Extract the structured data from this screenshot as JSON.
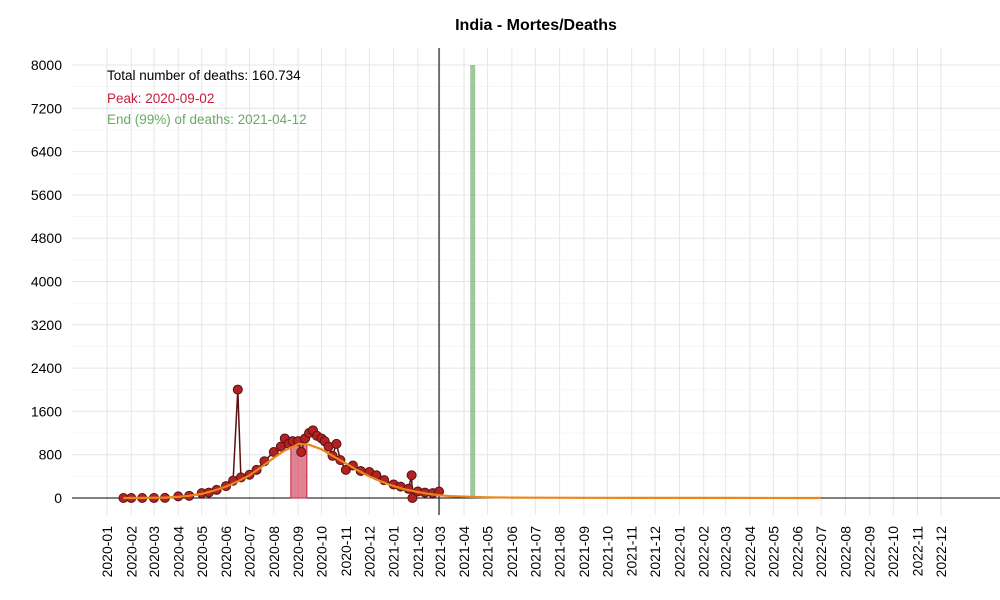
{
  "chart_data": {
    "type": "line",
    "title": "India - Mortes/Deaths",
    "xlabel": "",
    "ylabel": "",
    "xlim": [
      "2020-01-01",
      "2023-01-31"
    ],
    "ylim": [
      0,
      8000
    ],
    "grid": true,
    "y_ticks": [
      0,
      800,
      1600,
      2400,
      3200,
      4000,
      4800,
      5600,
      6400,
      7200,
      8000
    ],
    "x_tick_labels": [
      "2020-01",
      "2020-02",
      "2020-03",
      "2020-04",
      "2020-05",
      "2020-06",
      "2020-07",
      "2020-08",
      "2020-09",
      "2020-10",
      "2020-11",
      "2020-12",
      "2021-01",
      "2021-02",
      "2021-03",
      "2021-04",
      "2021-05",
      "2021-06",
      "2021-07",
      "2021-08",
      "2021-09",
      "2021-10",
      "2021-11",
      "2021-12",
      "2022-01",
      "2022-02",
      "2022-03",
      "2022-04",
      "2022-05",
      "2022-06",
      "2022-07",
      "2022-08",
      "2022-09",
      "2022-10",
      "2022-11",
      "2022-12"
    ],
    "annotations": {
      "total": "Total number of deaths: 160.734",
      "peak": "Peak: 2020-09-02",
      "end": "End (99%) of deaths: 2021-04-12"
    },
    "current_date_line": "2021-02-28",
    "peak_date": "2020-09-02",
    "end_date": "2021-04-12",
    "observed": {
      "dates": [
        "2020-01-22",
        "2020-02-01",
        "2020-02-15",
        "2020-03-01",
        "2020-03-15",
        "2020-04-01",
        "2020-04-15",
        "2020-05-01",
        "2020-05-10",
        "2020-05-20",
        "2020-06-01",
        "2020-06-10",
        "2020-06-16",
        "2020-06-20",
        "2020-07-01",
        "2020-07-10",
        "2020-07-20",
        "2020-08-01",
        "2020-08-10",
        "2020-08-15",
        "2020-08-20",
        "2020-08-25",
        "2020-09-01",
        "2020-09-05",
        "2020-09-10",
        "2020-09-15",
        "2020-09-20",
        "2020-09-25",
        "2020-10-01",
        "2020-10-05",
        "2020-10-10",
        "2020-10-15",
        "2020-10-20",
        "2020-10-25",
        "2020-11-01",
        "2020-11-10",
        "2020-11-20",
        "2020-12-01",
        "2020-12-10",
        "2020-12-20",
        "2021-01-01",
        "2021-01-10",
        "2021-01-20",
        "2021-01-24",
        "2021-01-25",
        "2021-02-01",
        "2021-02-10",
        "2021-02-20",
        "2021-02-28"
      ],
      "values": [
        0,
        0,
        0,
        1,
        2,
        30,
        40,
        90,
        100,
        150,
        220,
        320,
        2003,
        380,
        430,
        520,
        680,
        850,
        950,
        1100,
        1000,
        1050,
        1050,
        850,
        1100,
        1200,
        1250,
        1150,
        1100,
        1050,
        950,
        780,
        1000,
        700,
        520,
        600,
        500,
        480,
        420,
        330,
        250,
        210,
        170,
        420,
        0,
        120,
        100,
        90,
        120
      ]
    },
    "fitted_curve": {
      "dates": [
        "2020-01-22",
        "2020-02-15",
        "2020-03-15",
        "2020-04-01",
        "2020-04-15",
        "2020-05-01",
        "2020-05-15",
        "2020-06-01",
        "2020-06-15",
        "2020-07-01",
        "2020-07-15",
        "2020-08-01",
        "2020-08-15",
        "2020-09-02",
        "2020-09-15",
        "2020-10-01",
        "2020-10-15",
        "2020-11-01",
        "2020-11-15",
        "2020-12-01",
        "2020-12-15",
        "2021-01-01",
        "2021-01-15",
        "2021-02-01",
        "2021-02-15",
        "2021-03-01",
        "2021-03-15",
        "2021-04-01",
        "2021-04-15",
        "2021-05-01",
        "2021-06-01",
        "2021-07-01",
        "2021-09-01",
        "2021-12-01",
        "2022-03-01",
        "2022-06-01",
        "2022-07-01"
      ],
      "values": [
        0,
        2,
        8,
        20,
        40,
        75,
        130,
        210,
        300,
        420,
        560,
        740,
        880,
        1000,
        985,
        900,
        780,
        640,
        520,
        400,
        310,
        220,
        160,
        110,
        75,
        50,
        35,
        25,
        18,
        13,
        8,
        5,
        3,
        2,
        1,
        0,
        0
      ]
    },
    "peak_bar_value": 1000,
    "colors": {
      "points": "#b22222",
      "points_stroke": "#5a1010",
      "observed_line": "#5a1010",
      "fitted_curve": "#e8881a",
      "peak": "#c81e3a",
      "end": "#6aaa64",
      "grid": "#e6e6e6"
    }
  }
}
